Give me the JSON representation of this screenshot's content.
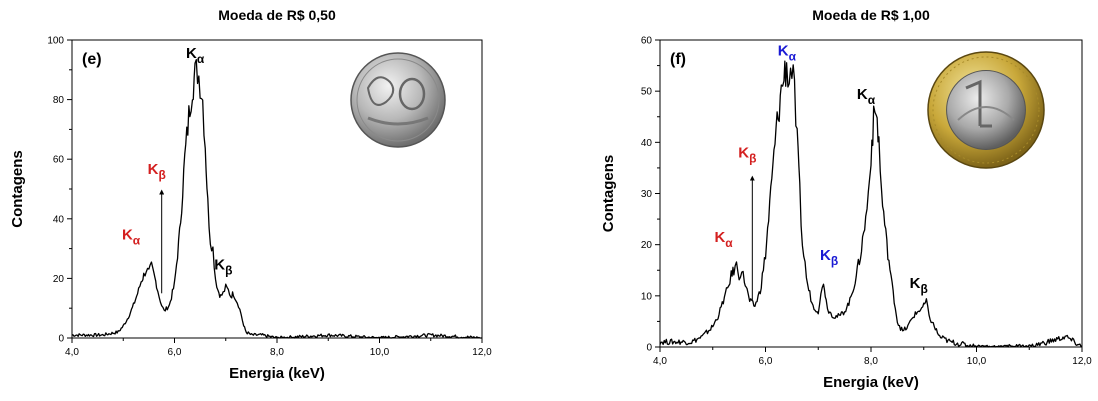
{
  "chart_data": [
    {
      "type": "line",
      "panel_label": "(e)",
      "title": "Moeda de R$ 0,50",
      "xlabel": "Energia (keV)",
      "ylabel": "Contagens",
      "xlim": [
        4.0,
        12.0
      ],
      "ylim": [
        0,
        100
      ],
      "xticks": [
        4.0,
        6.0,
        8.0,
        10.0,
        12.0
      ],
      "xtick_labels": [
        "4,0",
        "6,0",
        "8,0",
        "10,0",
        "12,0"
      ],
      "yticks": [
        0,
        20,
        40,
        60,
        80,
        100
      ],
      "ytick_labels": [
        "0",
        "20",
        "40",
        "60",
        "80",
        "100"
      ],
      "grid": false,
      "series": [
        {
          "color": "#000000",
          "x": [
            4.0,
            4.3,
            4.6,
            4.9,
            5.0,
            5.1,
            5.2,
            5.3,
            5.35,
            5.4,
            5.45,
            5.5,
            5.55,
            5.6,
            5.65,
            5.7,
            5.75,
            5.8,
            5.9,
            6.0,
            6.1,
            6.2,
            6.3,
            6.35,
            6.4,
            6.45,
            6.5,
            6.55,
            6.6,
            6.65,
            6.7,
            6.75,
            6.8,
            6.85,
            6.9,
            6.95,
            7.0,
            7.05,
            7.1,
            7.15,
            7.2,
            7.25,
            7.3,
            7.35,
            7.4,
            7.5,
            7.7,
            8.0,
            9.0,
            10.0,
            11.0,
            12.0
          ],
          "y": [
            1,
            1,
            1,
            2,
            4,
            7,
            11,
            16,
            19,
            21,
            23,
            22,
            24,
            21,
            18,
            14,
            11,
            9,
            11,
            18,
            35,
            60,
            78,
            85,
            88,
            90,
            86,
            80,
            65,
            45,
            33,
            30,
            20,
            16,
            14,
            15,
            17,
            16,
            14,
            15,
            13,
            11,
            8,
            4,
            2,
            1,
            1,
            0,
            1,
            0,
            1,
            0
          ]
        }
      ],
      "annotations": [
        {
          "main": "K",
          "sub": "α",
          "color": "#000000",
          "x": 6.5,
          "y": 94
        },
        {
          "main": "K",
          "sub": "β",
          "color": "#000000",
          "x": 7.05,
          "y": 23
        },
        {
          "main": "K",
          "sub": "α",
          "color": "#d42020",
          "x": 5.25,
          "y": 33
        },
        {
          "main": "K",
          "sub": "β",
          "color": "#d42020",
          "x": 5.75,
          "y": 55
        },
        {
          "arrow": true,
          "x": 5.75,
          "y_from": 15,
          "y_to": 49
        }
      ],
      "coin_image": "coin-50-centavos"
    },
    {
      "type": "line",
      "panel_label": "(f)",
      "title": "Moeda de R$ 1,00",
      "xlabel": "Energia (keV)",
      "ylabel": "Contagens",
      "xlim": [
        4.0,
        12.0
      ],
      "ylim": [
        0,
        60
      ],
      "xticks": [
        4.0,
        6.0,
        8.0,
        10.0,
        12.0
      ],
      "xtick_labels": [
        "4,0",
        "6,0",
        "8,0",
        "10,0",
        "12,0"
      ],
      "yticks": [
        0,
        10,
        20,
        30,
        40,
        50,
        60
      ],
      "ytick_labels": [
        "0",
        "10",
        "20",
        "30",
        "40",
        "50",
        "60"
      ],
      "grid": false,
      "series": [
        {
          "color": "#000000",
          "x": [
            4.0,
            4.3,
            4.6,
            4.8,
            5.0,
            5.1,
            5.2,
            5.3,
            5.35,
            5.4,
            5.45,
            5.5,
            5.55,
            5.6,
            5.65,
            5.7,
            5.8,
            5.9,
            6.0,
            6.1,
            6.2,
            6.3,
            6.35,
            6.4,
            6.45,
            6.5,
            6.55,
            6.6,
            6.65,
            6.7,
            6.75,
            6.8,
            6.9,
            7.0,
            7.05,
            7.1,
            7.15,
            7.2,
            7.3,
            7.4,
            7.5,
            7.6,
            7.7,
            7.8,
            7.9,
            7.95,
            8.0,
            8.05,
            8.1,
            8.15,
            8.2,
            8.3,
            8.4,
            8.5,
            8.6,
            8.7,
            8.8,
            8.9,
            9.0,
            9.05,
            9.1,
            9.2,
            9.3,
            9.5,
            10.0,
            11.0,
            11.7,
            12.0
          ],
          "y": [
            1,
            1,
            1,
            2,
            4,
            6,
            9,
            12,
            14,
            15,
            16,
            14,
            15,
            13,
            11,
            9,
            8,
            11,
            18,
            30,
            42,
            50,
            53,
            55,
            52,
            55,
            49,
            40,
            30,
            20,
            16,
            12,
            8,
            7,
            10,
            13,
            9,
            7,
            6,
            6,
            7,
            9,
            13,
            18,
            25,
            30,
            38,
            44,
            46,
            40,
            30,
            20,
            12,
            5,
            3,
            4,
            6,
            7,
            8,
            9,
            6,
            4,
            2,
            1,
            0,
            0,
            2,
            0
          ]
        }
      ],
      "annotations": [
        {
          "main": "K",
          "sub": "α",
          "color": "#1a1ad4",
          "x": 6.5,
          "y": 57
        },
        {
          "main": "K",
          "sub": "α",
          "color": "#000000",
          "x": 8.0,
          "y": 48.5
        },
        {
          "main": "K",
          "sub": "β",
          "color": "#1a1ad4",
          "x": 7.3,
          "y": 17
        },
        {
          "main": "K",
          "sub": "β",
          "color": "#000000",
          "x": 9.0,
          "y": 11.5
        },
        {
          "main": "K",
          "sub": "α",
          "color": "#d42020",
          "x": 5.3,
          "y": 20.5
        },
        {
          "main": "K",
          "sub": "β",
          "color": "#d42020",
          "x": 5.75,
          "y": 37
        },
        {
          "arrow": true,
          "x": 5.75,
          "y_from": 9,
          "y_to": 33
        }
      ],
      "coin_image": "coin-1-real"
    }
  ]
}
